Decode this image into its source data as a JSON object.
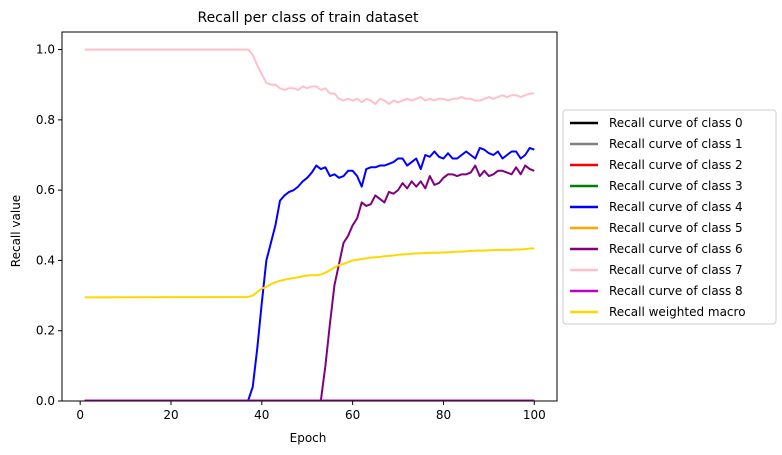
{
  "chart_data": {
    "type": "line",
    "title": "Recall per class of train dataset",
    "xlabel": "Epoch",
    "ylabel": "Recall value",
    "xlim": [
      -4,
      105
    ],
    "ylim": [
      0,
      1.05
    ],
    "xticks": [
      0,
      20,
      40,
      60,
      80,
      100
    ],
    "yticks": [
      0.0,
      0.2,
      0.4,
      0.6,
      0.8,
      1.0
    ],
    "xtick_labels": [
      "0",
      "20",
      "40",
      "60",
      "80",
      "100"
    ],
    "ytick_labels": [
      "0.0",
      "0.2",
      "0.4",
      "0.6",
      "0.8",
      "1.0"
    ],
    "grid": false,
    "legend_position": "outside-right",
    "series": [
      {
        "name": "Recall curve of class 0",
        "color": "#000000",
        "points": [
          [
            1,
            0
          ],
          [
            100,
            0
          ]
        ]
      },
      {
        "name": "Recall curve of class 1",
        "color": "#808080",
        "points": [
          [
            1,
            0
          ],
          [
            100,
            0
          ]
        ]
      },
      {
        "name": "Recall curve of class 2",
        "color": "#ff0000",
        "points": [
          [
            1,
            0
          ],
          [
            100,
            0
          ]
        ]
      },
      {
        "name": "Recall curve of class 3",
        "color": "#008000",
        "points": [
          [
            1,
            0
          ],
          [
            100,
            0
          ]
        ]
      },
      {
        "name": "Recall curve of class 4",
        "color": "#0000ff",
        "points": [
          [
            1,
            0
          ],
          [
            37,
            0
          ],
          [
            38,
            0.04
          ],
          [
            39,
            0.15
          ],
          [
            40,
            0.28
          ],
          [
            41,
            0.4
          ],
          [
            42,
            0.45
          ],
          [
            43,
            0.5
          ],
          [
            44,
            0.57
          ],
          [
            45,
            0.585
          ],
          [
            46,
            0.595
          ],
          [
            47,
            0.6
          ],
          [
            48,
            0.61
          ],
          [
            49,
            0.625
          ],
          [
            50,
            0.635
          ],
          [
            51,
            0.65
          ],
          [
            52,
            0.67
          ],
          [
            53,
            0.66
          ],
          [
            54,
            0.665
          ],
          [
            55,
            0.64
          ],
          [
            56,
            0.645
          ],
          [
            57,
            0.635
          ],
          [
            58,
            0.64
          ],
          [
            59,
            0.655
          ],
          [
            60,
            0.655
          ],
          [
            61,
            0.64
          ],
          [
            62,
            0.61
          ],
          [
            63,
            0.66
          ],
          [
            64,
            0.665
          ],
          [
            65,
            0.665
          ],
          [
            66,
            0.67
          ],
          [
            67,
            0.67
          ],
          [
            68,
            0.675
          ],
          [
            69,
            0.68
          ],
          [
            70,
            0.69
          ],
          [
            71,
            0.69
          ],
          [
            72,
            0.67
          ],
          [
            73,
            0.68
          ],
          [
            74,
            0.69
          ],
          [
            75,
            0.66
          ],
          [
            76,
            0.7
          ],
          [
            77,
            0.695
          ],
          [
            78,
            0.71
          ],
          [
            79,
            0.695
          ],
          [
            80,
            0.69
          ],
          [
            81,
            0.705
          ],
          [
            82,
            0.69
          ],
          [
            83,
            0.69
          ],
          [
            84,
            0.7
          ],
          [
            85,
            0.71
          ],
          [
            86,
            0.7
          ],
          [
            87,
            0.69
          ],
          [
            88,
            0.72
          ],
          [
            89,
            0.715
          ],
          [
            90,
            0.705
          ],
          [
            91,
            0.7
          ],
          [
            92,
            0.71
          ],
          [
            93,
            0.69
          ],
          [
            94,
            0.7
          ],
          [
            95,
            0.71
          ],
          [
            96,
            0.71
          ],
          [
            97,
            0.69
          ],
          [
            98,
            0.7
          ],
          [
            99,
            0.72
          ],
          [
            100,
            0.715
          ]
        ]
      },
      {
        "name": "Recall curve of class 5",
        "color": "#ffa500",
        "points": [
          [
            1,
            0
          ],
          [
            100,
            0
          ]
        ]
      },
      {
        "name": "Recall curve of class 6",
        "color": "#800080",
        "points": [
          [
            1,
            0
          ],
          [
            53,
            0
          ],
          [
            54,
            0.1
          ],
          [
            55,
            0.22
          ],
          [
            56,
            0.33
          ],
          [
            57,
            0.39
          ],
          [
            58,
            0.45
          ],
          [
            59,
            0.47
          ],
          [
            60,
            0.5
          ],
          [
            61,
            0.52
          ],
          [
            62,
            0.565
          ],
          [
            63,
            0.555
          ],
          [
            64,
            0.56
          ],
          [
            65,
            0.585
          ],
          [
            66,
            0.575
          ],
          [
            67,
            0.565
          ],
          [
            68,
            0.595
          ],
          [
            69,
            0.59
          ],
          [
            70,
            0.6
          ],
          [
            71,
            0.62
          ],
          [
            72,
            0.605
          ],
          [
            73,
            0.625
          ],
          [
            74,
            0.61
          ],
          [
            75,
            0.625
          ],
          [
            76,
            0.605
          ],
          [
            77,
            0.64
          ],
          [
            78,
            0.615
          ],
          [
            79,
            0.62
          ],
          [
            80,
            0.635
          ],
          [
            81,
            0.645
          ],
          [
            82,
            0.645
          ],
          [
            83,
            0.64
          ],
          [
            84,
            0.645
          ],
          [
            85,
            0.645
          ],
          [
            86,
            0.65
          ],
          [
            87,
            0.67
          ],
          [
            88,
            0.64
          ],
          [
            89,
            0.655
          ],
          [
            90,
            0.64
          ],
          [
            91,
            0.645
          ],
          [
            92,
            0.655
          ],
          [
            93,
            0.655
          ],
          [
            94,
            0.65
          ],
          [
            95,
            0.645
          ],
          [
            96,
            0.665
          ],
          [
            97,
            0.645
          ],
          [
            98,
            0.67
          ],
          [
            99,
            0.66
          ],
          [
            100,
            0.655
          ]
        ]
      },
      {
        "name": "Recall curve of class 7",
        "color": "#ffc0cb",
        "points": [
          [
            1,
            1.0
          ],
          [
            2,
            1.0
          ],
          [
            37,
            1.0
          ],
          [
            38,
            0.985
          ],
          [
            39,
            0.955
          ],
          [
            40,
            0.93
          ],
          [
            41,
            0.905
          ],
          [
            42,
            0.9
          ],
          [
            43,
            0.9
          ],
          [
            44,
            0.89
          ],
          [
            45,
            0.885
          ],
          [
            46,
            0.89
          ],
          [
            47,
            0.89
          ],
          [
            48,
            0.885
          ],
          [
            49,
            0.895
          ],
          [
            50,
            0.89
          ],
          [
            51,
            0.895
          ],
          [
            52,
            0.895
          ],
          [
            53,
            0.885
          ],
          [
            54,
            0.89
          ],
          [
            55,
            0.875
          ],
          [
            56,
            0.875
          ],
          [
            57,
            0.86
          ],
          [
            58,
            0.855
          ],
          [
            59,
            0.86
          ],
          [
            60,
            0.855
          ],
          [
            61,
            0.86
          ],
          [
            62,
            0.85
          ],
          [
            63,
            0.86
          ],
          [
            64,
            0.855
          ],
          [
            65,
            0.845
          ],
          [
            66,
            0.86
          ],
          [
            67,
            0.855
          ],
          [
            68,
            0.845
          ],
          [
            69,
            0.855
          ],
          [
            70,
            0.85
          ],
          [
            71,
            0.855
          ],
          [
            72,
            0.86
          ],
          [
            73,
            0.855
          ],
          [
            74,
            0.86
          ],
          [
            75,
            0.865
          ],
          [
            76,
            0.855
          ],
          [
            77,
            0.86
          ],
          [
            78,
            0.855
          ],
          [
            79,
            0.86
          ],
          [
            80,
            0.86
          ],
          [
            81,
            0.855
          ],
          [
            82,
            0.86
          ],
          [
            83,
            0.86
          ],
          [
            84,
            0.865
          ],
          [
            85,
            0.86
          ],
          [
            86,
            0.86
          ],
          [
            87,
            0.855
          ],
          [
            88,
            0.855
          ],
          [
            89,
            0.86
          ],
          [
            90,
            0.865
          ],
          [
            91,
            0.86
          ],
          [
            92,
            0.865
          ],
          [
            93,
            0.87
          ],
          [
            94,
            0.865
          ],
          [
            95,
            0.87
          ],
          [
            96,
            0.87
          ],
          [
            97,
            0.865
          ],
          [
            98,
            0.87
          ],
          [
            99,
            0.875
          ],
          [
            100,
            0.875
          ]
        ]
      },
      {
        "name": "Recall curve of class 8",
        "color": "#c000c0",
        "points": [
          [
            1,
            0
          ],
          [
            100,
            0
          ]
        ]
      },
      {
        "name": "Recall weighted macro",
        "color": "#ffd700",
        "points": [
          [
            1,
            0.295
          ],
          [
            37,
            0.296
          ],
          [
            38,
            0.3
          ],
          [
            39,
            0.31
          ],
          [
            40,
            0.32
          ],
          [
            41,
            0.325
          ],
          [
            42,
            0.332
          ],
          [
            43,
            0.338
          ],
          [
            44,
            0.342
          ],
          [
            45,
            0.345
          ],
          [
            46,
            0.348
          ],
          [
            47,
            0.35
          ],
          [
            48,
            0.352
          ],
          [
            49,
            0.355
          ],
          [
            50,
            0.357
          ],
          [
            51,
            0.358
          ],
          [
            52,
            0.358
          ],
          [
            53,
            0.36
          ],
          [
            54,
            0.365
          ],
          [
            55,
            0.372
          ],
          [
            56,
            0.38
          ],
          [
            57,
            0.387
          ],
          [
            58,
            0.39
          ],
          [
            59,
            0.395
          ],
          [
            60,
            0.4
          ],
          [
            61,
            0.402
          ],
          [
            62,
            0.404
          ],
          [
            63,
            0.406
          ],
          [
            64,
            0.408
          ],
          [
            65,
            0.409
          ],
          [
            66,
            0.41
          ],
          [
            67,
            0.412
          ],
          [
            68,
            0.413
          ],
          [
            69,
            0.414
          ],
          [
            70,
            0.416
          ],
          [
            71,
            0.417
          ],
          [
            72,
            0.418
          ],
          [
            73,
            0.419
          ],
          [
            74,
            0.42
          ],
          [
            75,
            0.42
          ],
          [
            76,
            0.421
          ],
          [
            77,
            0.422
          ],
          [
            78,
            0.422
          ],
          [
            79,
            0.422
          ],
          [
            80,
            0.423
          ],
          [
            81,
            0.423
          ],
          [
            82,
            0.424
          ],
          [
            83,
            0.425
          ],
          [
            84,
            0.425
          ],
          [
            85,
            0.426
          ],
          [
            86,
            0.427
          ],
          [
            87,
            0.428
          ],
          [
            88,
            0.428
          ],
          [
            89,
            0.428
          ],
          [
            90,
            0.429
          ],
          [
            91,
            0.429
          ],
          [
            92,
            0.43
          ],
          [
            93,
            0.43
          ],
          [
            94,
            0.43
          ],
          [
            95,
            0.43
          ],
          [
            96,
            0.431
          ],
          [
            97,
            0.431
          ],
          [
            98,
            0.432
          ],
          [
            99,
            0.434
          ],
          [
            100,
            0.434
          ]
        ]
      }
    ]
  }
}
